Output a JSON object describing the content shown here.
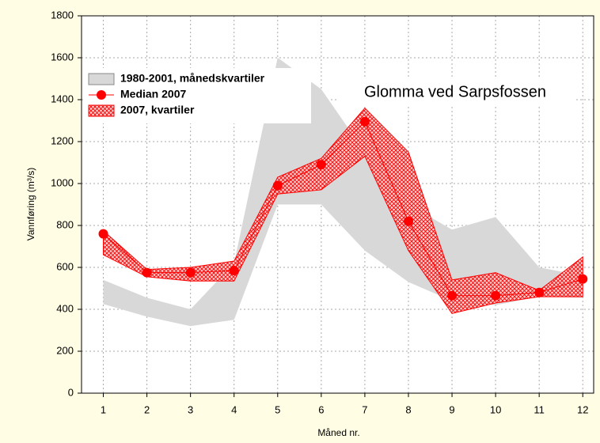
{
  "chart_data": {
    "type": "line",
    "title": "Glomma ved Sarpsfossen",
    "x_label": "Måned nr.",
    "y_label": "Vannføring (m³/s)",
    "x": [
      1,
      2,
      3,
      4,
      5,
      6,
      7,
      8,
      9,
      10,
      11,
      12
    ],
    "xlim": [
      0.5,
      12.25
    ],
    "xticks": [
      1,
      2,
      3,
      4,
      5,
      6,
      7,
      8,
      9,
      10,
      11,
      12
    ],
    "ylim": [
      0,
      1800
    ],
    "yticks": [
      0,
      200,
      400,
      600,
      800,
      1000,
      1200,
      1400,
      1600,
      1800
    ],
    "grid": true,
    "legend": "upper left",
    "series": [
      {
        "name": "1980-2001, månedskvartiler",
        "color": "#d8d8d8",
        "lower": [
          425,
          365,
          320,
          350,
          900,
          900,
          680,
          530,
          440,
          420,
          460,
          455
        ],
        "upper": [
          540,
          455,
          400,
          620,
          1600,
          1450,
          1150,
          900,
          780,
          840,
          600,
          560
        ]
      },
      {
        "name": "Median 2007",
        "color": "#ff0000",
        "values": [
          760,
          575,
          575,
          585,
          990,
          1090,
          1295,
          820,
          465,
          465,
          480,
          545
        ]
      },
      {
        "name": "2007, kvartiler",
        "color": "#ff0000",
        "lower": [
          660,
          555,
          535,
          535,
          950,
          970,
          1130,
          680,
          380,
          430,
          460,
          460
        ],
        "upper": [
          775,
          590,
          600,
          630,
          1030,
          1120,
          1360,
          1150,
          540,
          575,
          490,
          650
        ]
      }
    ]
  }
}
